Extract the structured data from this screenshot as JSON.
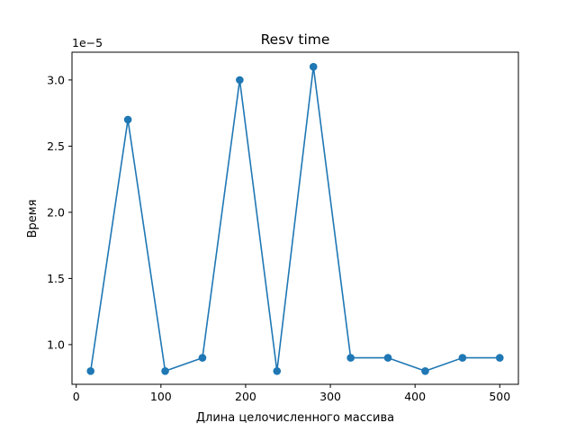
{
  "chart_data": {
    "type": "line",
    "title": "Resv time",
    "xlabel": "Длина целочисленного массива",
    "ylabel": "Время",
    "y_scale_label": "1e−5",
    "x": [
      17,
      61,
      105,
      149,
      193,
      237,
      280,
      324,
      368,
      412,
      456,
      500
    ],
    "series": [
      {
        "values": [
          0.8,
          2.7,
          0.8,
          0.9,
          3.0,
          0.8,
          3.1,
          0.9,
          0.9,
          0.8,
          0.9,
          0.9
        ],
        "color": "#1f77b4",
        "marker": "circle"
      }
    ],
    "xlim": [
      -5,
      522
    ],
    "ylim": [
      0.7,
      3.21
    ],
    "xticks": [
      0,
      100,
      200,
      300,
      400,
      500
    ],
    "xtick_labels": [
      "0",
      "100",
      "200",
      "300",
      "400",
      "500"
    ],
    "yticks": [
      1.0,
      1.5,
      2.0,
      2.5,
      3.0
    ],
    "ytick_labels": [
      "1.0",
      "1.5",
      "2.0",
      "2.5",
      "3.0"
    ],
    "grid": false,
    "legend": false
  }
}
